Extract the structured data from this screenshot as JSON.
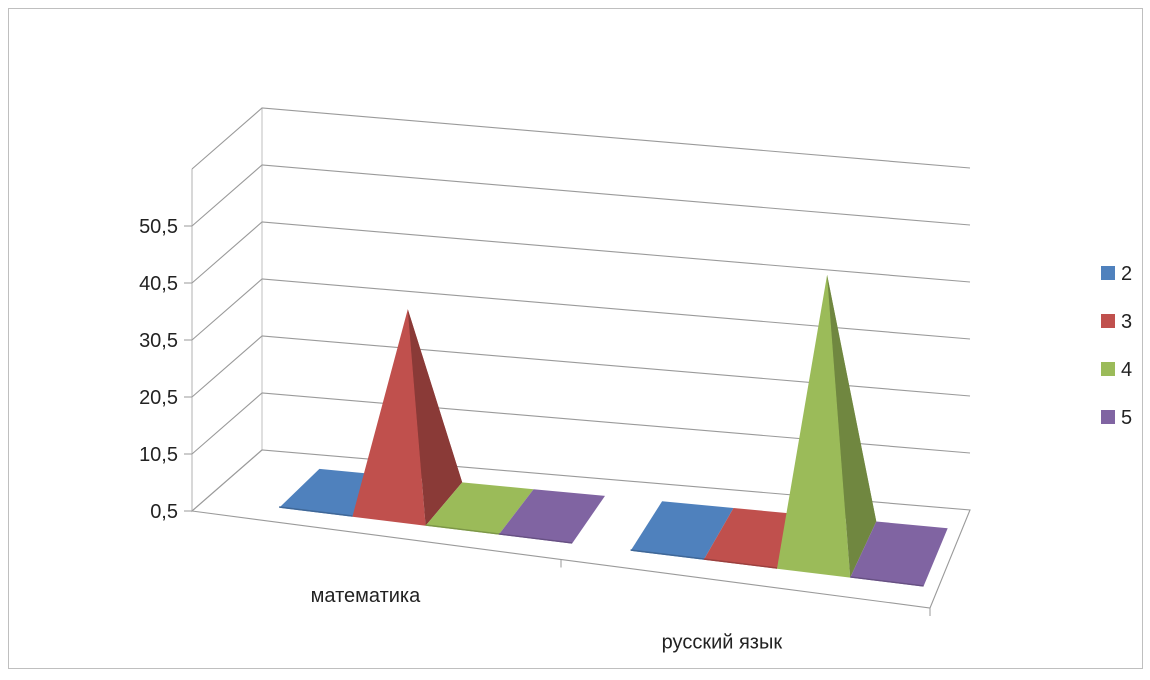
{
  "chart_data": {
    "type": "bar",
    "style": "3d-pyramid",
    "categories": [
      "математика",
      "русский язык"
    ],
    "series": [
      {
        "name": "2",
        "color": "#4F81BD",
        "values": [
          0.5,
          0.5
        ]
      },
      {
        "name": "3",
        "color": "#C0504D",
        "values": [
          34,
          0.5
        ]
      },
      {
        "name": "4",
        "color": "#9BBB59",
        "values": [
          0.5,
          48
        ]
      },
      {
        "name": "5",
        "color": "#8064A2",
        "values": [
          0.5,
          0.5
        ]
      }
    ],
    "y_ticks": [
      "0,5",
      "10,5",
      "20,5",
      "30,5",
      "40,5",
      "50,5"
    ],
    "ylim": [
      0.5,
      60.5
    ],
    "grid": true,
    "legend_position": "right",
    "title": "",
    "xlabel": "",
    "ylabel": ""
  }
}
